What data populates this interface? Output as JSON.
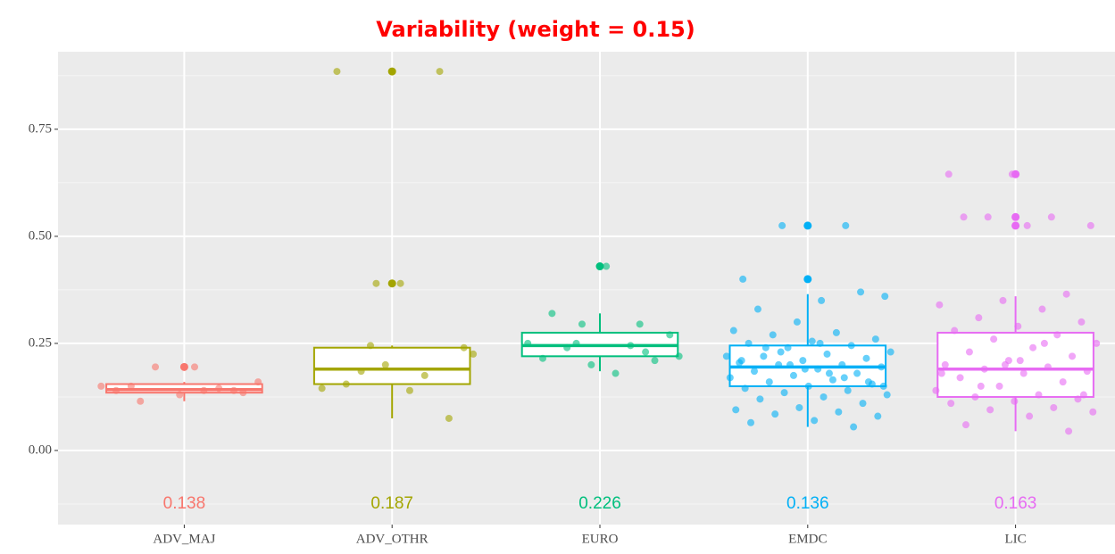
{
  "chart_data": {
    "type": "box",
    "title": "Variability (weight = 0.15)",
    "categories": [
      "ADV_MAJ",
      "ADV_OTHR",
      "EURO",
      "EMDC",
      "LIC"
    ],
    "ylim": [
      -0.173,
      0.931
    ],
    "yticks": [
      {
        "value": 0,
        "label": "0.00"
      },
      {
        "value": 0.25,
        "label": "0.25"
      },
      {
        "value": 0.5,
        "label": "0.50"
      },
      {
        "value": 0.75,
        "label": "0.75"
      }
    ],
    "grid": true,
    "boxes": [
      {
        "color": "#f8766d",
        "low": 0.115,
        "q1": 0.135,
        "median": 0.142,
        "q3": 0.155,
        "high": 0.16,
        "outliers": [
          0.195
        ],
        "annotation": "0.138",
        "points": [
          0.15,
          0.14,
          0.115,
          0.135,
          0.13,
          0.14,
          0.145,
          0.195,
          0.16,
          0.195,
          0.15,
          0.14
        ]
      },
      {
        "color": "#a3a500",
        "low": 0.075,
        "q1": 0.155,
        "median": 0.19,
        "q3": 0.24,
        "high": 0.245,
        "outliers": [
          0.39,
          0.885
        ],
        "annotation": "0.187",
        "points": [
          0.245,
          0.225,
          0.14,
          0.155,
          0.075,
          0.2,
          0.145,
          0.175,
          0.185,
          0.24,
          0.39,
          0.885,
          0.885,
          0.39
        ]
      },
      {
        "color": "#00bf7d",
        "low": 0.185,
        "q1": 0.22,
        "median": 0.245,
        "q3": 0.275,
        "high": 0.32,
        "outliers": [
          0.43
        ],
        "annotation": "0.226",
        "points": [
          0.295,
          0.25,
          0.22,
          0.18,
          0.32,
          0.21,
          0.2,
          0.25,
          0.245,
          0.24,
          0.27,
          0.43,
          0.215,
          0.23,
          0.295
        ]
      },
      {
        "color": "#00b0f6",
        "low": 0.055,
        "q1": 0.15,
        "median": 0.195,
        "q3": 0.245,
        "high": 0.365,
        "outliers": [
          0.4,
          0.525
        ],
        "annotation": "0.136",
        "points": [
          0.4,
          0.525,
          0.525,
          0.36,
          0.35,
          0.33,
          0.37,
          0.3,
          0.28,
          0.275,
          0.27,
          0.26,
          0.255,
          0.25,
          0.245,
          0.24,
          0.23,
          0.225,
          0.22,
          0.215,
          0.21,
          0.205,
          0.2,
          0.2,
          0.195,
          0.19,
          0.185,
          0.18,
          0.175,
          0.17,
          0.165,
          0.16,
          0.155,
          0.15,
          0.145,
          0.14,
          0.135,
          0.13,
          0.125,
          0.12,
          0.11,
          0.1,
          0.095,
          0.09,
          0.085,
          0.08,
          0.07,
          0.065,
          0.055,
          0.2,
          0.22,
          0.18,
          0.24,
          0.16,
          0.19,
          0.21,
          0.17,
          0.23,
          0.15,
          0.25
        ]
      },
      {
        "color": "#e76bf3",
        "low": 0.045,
        "q1": 0.125,
        "median": 0.19,
        "q3": 0.275,
        "high": 0.36,
        "outliers": [
          0.525,
          0.545,
          0.645
        ],
        "annotation": "0.163",
        "points": [
          0.645,
          0.645,
          0.545,
          0.545,
          0.525,
          0.525,
          0.545,
          0.365,
          0.35,
          0.34,
          0.33,
          0.31,
          0.3,
          0.29,
          0.28,
          0.27,
          0.26,
          0.25,
          0.24,
          0.23,
          0.22,
          0.21,
          0.2,
          0.195,
          0.19,
          0.185,
          0.18,
          0.17,
          0.16,
          0.15,
          0.14,
          0.13,
          0.125,
          0.12,
          0.115,
          0.11,
          0.1,
          0.095,
          0.09,
          0.08,
          0.06,
          0.045,
          0.2,
          0.18,
          0.25,
          0.15,
          0.13,
          0.21
        ]
      }
    ]
  }
}
